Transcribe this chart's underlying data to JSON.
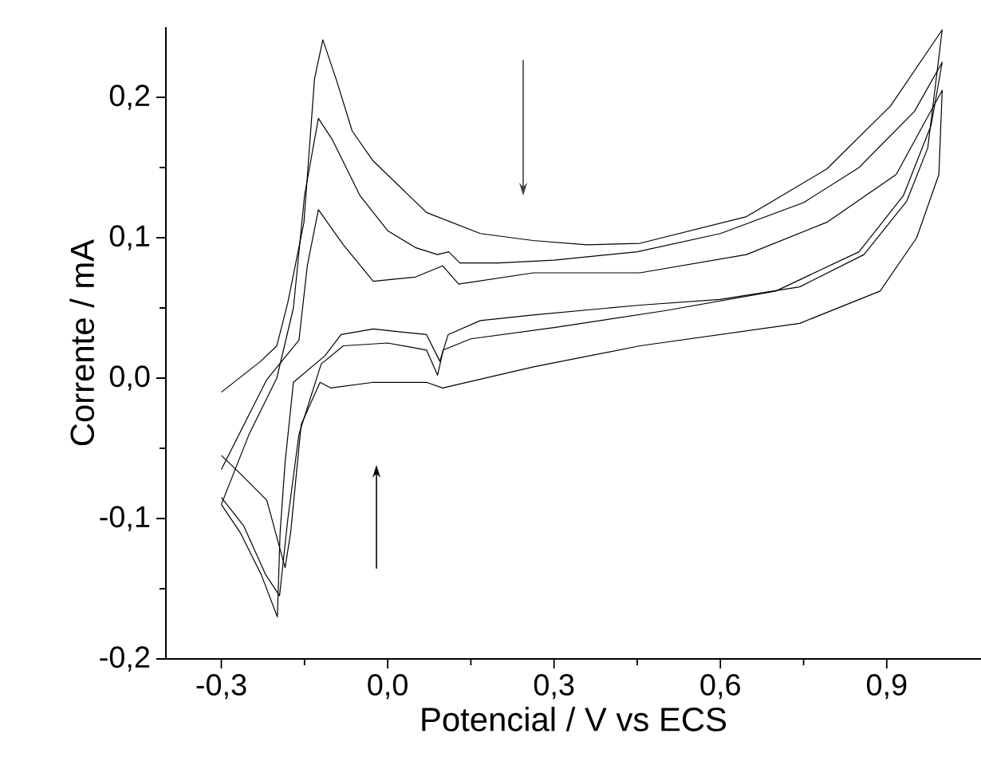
{
  "chart_data": {
    "type": "line",
    "xlabel": "Potencial / V  vs ECS",
    "ylabel": "Corrente  /  mA",
    "xlim": [
      -0.4,
      1.07
    ],
    "ylim": [
      -0.2,
      0.25
    ],
    "xticks": [
      {
        "value": -0.3,
        "label": "-0,3"
      },
      {
        "value": 0.0,
        "label": "0,0"
      },
      {
        "value": 0.3,
        "label": "0,3"
      },
      {
        "value": 0.6,
        "label": "0,6"
      },
      {
        "value": 0.9,
        "label": "0,9"
      }
    ],
    "yticks": [
      {
        "value": -0.2,
        "label": "-0,2"
      },
      {
        "value": -0.1,
        "label": "-0,1"
      },
      {
        "value": 0.0,
        "label": "0,0"
      },
      {
        "value": 0.1,
        "label": "0,1"
      },
      {
        "value": 0.2,
        "label": "0,2"
      }
    ],
    "marker": "none",
    "line_style": "solid",
    "series": [
      {
        "color": "#000000",
        "x": [
          -0.3,
          -0.229,
          -0.2,
          -0.18,
          -0.151,
          -0.132,
          -0.117,
          -0.093,
          -0.064,
          -0.027,
          0.07,
          0.167,
          0.262,
          0.359,
          0.455,
          0.647,
          0.792,
          0.907,
          1.0,
          0.974,
          0.936,
          0.859,
          0.743,
          0.599,
          0.455,
          0.262,
          0.167,
          0.109,
          0.094,
          0.07,
          -0.026,
          -0.084,
          -0.113,
          -0.17,
          -0.185,
          -0.194,
          -0.199,
          -0.228,
          -0.266,
          -0.3
        ],
        "values": [
          -0.01,
          0.012,
          0.023,
          0.054,
          0.111,
          0.213,
          0.241,
          0.213,
          0.176,
          0.155,
          0.118,
          0.103,
          0.098,
          0.095,
          0.096,
          0.115,
          0.149,
          0.194,
          0.248,
          0.164,
          0.126,
          0.088,
          0.065,
          0.056,
          0.052,
          0.045,
          0.041,
          0.031,
          0.012,
          0.031,
          0.035,
          0.031,
          0.016,
          -0.003,
          -0.06,
          -0.11,
          -0.17,
          -0.14,
          -0.11,
          -0.09
        ]
      },
      {
        "color": "#000000",
        "x": [
          -0.3,
          -0.25,
          -0.2,
          -0.17,
          -0.15,
          -0.125,
          -0.1,
          -0.05,
          0.0,
          0.05,
          0.09,
          0.11,
          0.13,
          0.2,
          0.3,
          0.45,
          0.6,
          0.75,
          0.85,
          0.95,
          1.0,
          0.98,
          0.93,
          0.85,
          0.7,
          0.5,
          0.3,
          0.15,
          0.1,
          0.09,
          0.07,
          0.0,
          -0.08,
          -0.12,
          -0.16,
          -0.18,
          -0.195,
          -0.22,
          -0.26,
          -0.3
        ],
        "values": [
          -0.09,
          -0.04,
          0.0,
          0.05,
          0.13,
          0.185,
          0.17,
          0.13,
          0.105,
          0.093,
          0.088,
          0.09,
          0.082,
          0.082,
          0.084,
          0.09,
          0.103,
          0.125,
          0.15,
          0.19,
          0.225,
          0.18,
          0.13,
          0.09,
          0.062,
          0.048,
          0.036,
          0.028,
          0.02,
          0.002,
          0.02,
          0.025,
          0.023,
          0.01,
          -0.04,
          -0.1,
          -0.155,
          -0.14,
          -0.105,
          -0.085
        ]
      },
      {
        "color": "#000000",
        "x": [
          -0.3,
          -0.218,
          -0.16,
          -0.145,
          -0.125,
          -0.08,
          -0.026,
          0.05,
          0.099,
          0.128,
          0.263,
          0.455,
          0.647,
          0.792,
          0.917,
          1.0,
          0.994,
          0.954,
          0.888,
          0.743,
          0.455,
          0.263,
          0.099,
          0.07,
          -0.026,
          -0.103,
          -0.122,
          -0.156,
          -0.175,
          -0.185,
          -0.218,
          -0.266,
          -0.3
        ],
        "values": [
          -0.065,
          -0.001,
          0.027,
          0.08,
          0.12,
          0.095,
          0.069,
          0.072,
          0.08,
          0.067,
          0.075,
          0.075,
          0.088,
          0.111,
          0.145,
          0.205,
          0.145,
          0.1,
          0.062,
          0.039,
          0.023,
          0.008,
          -0.007,
          -0.003,
          -0.003,
          -0.007,
          -0.003,
          -0.033,
          -0.11,
          -0.135,
          -0.087,
          -0.068,
          -0.055
        ]
      }
    ]
  }
}
